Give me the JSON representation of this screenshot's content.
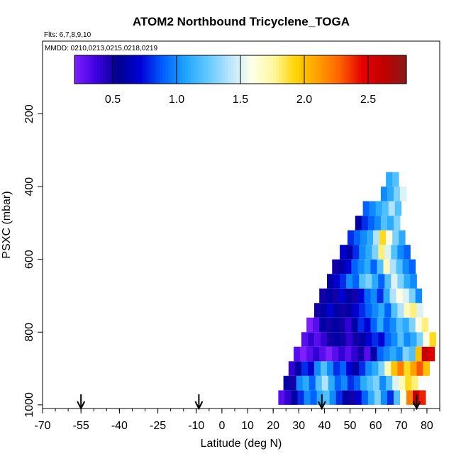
{
  "chart_data": {
    "type": "heatmap",
    "title": "ATOM2 Northbound Tricyclene_TOGA",
    "flights_note": "Flts: 6,7,8,9,10",
    "dates_note": "MMDD: 0210,0213,0215,0218,0219",
    "xlabel": "Latitude (deg N)",
    "ylabel": "PSXC (mbar)",
    "xlim": [
      -70,
      85
    ],
    "ylim": [
      1010,
      0
    ],
    "x_ticks": [
      -70,
      -55,
      -40,
      -25,
      -10,
      0,
      10,
      20,
      30,
      40,
      50,
      60,
      70,
      80
    ],
    "x_tick_labels": [
      "-70",
      "-55",
      "-40",
      "-25",
      "-10",
      "0",
      "10",
      "20",
      "30",
      "40",
      "50",
      "60",
      "70",
      "80"
    ],
    "y_ticks": [
      200,
      400,
      600,
      800,
      1000
    ],
    "y_tick_labels": [
      "200",
      "400",
      "600",
      "800",
      "1000"
    ],
    "colorbar": {
      "min": 0.2,
      "max": 2.8,
      "ticks": [
        0.5,
        1.0,
        1.5,
        2.0,
        2.5
      ],
      "tick_labels": [
        "0.5",
        "1.0",
        "1.5",
        "2.0",
        "2.5"
      ],
      "colors": [
        "#7f1fff",
        "#3c00e0",
        "#00008f",
        "#0000d8",
        "#0060ff",
        "#1ea4ff",
        "#60c8ff",
        "#b8e4ff",
        "#ffffe8",
        "#fff7a0",
        "#ffd400",
        "#ffa000",
        "#ff6000",
        "#e60000",
        "#c00000",
        "#8a1a1a"
      ]
    },
    "arrows_lat": [
      -55,
      -9,
      39,
      76
    ],
    "layers": [
      {
        "p": 980,
        "lat_start": 22,
        "values": [
          0.3,
          0.4,
          0.6,
          0.8,
          1.0,
          0.9,
          1.1,
          1.2,
          1.0,
          0.8,
          0.6,
          0.5,
          0.7,
          0.9,
          1.1,
          1.3,
          1.0,
          0.8,
          1.2,
          1.6,
          2.2,
          2.6,
          2.4
        ]
      },
      {
        "p": 940,
        "lat_start": 24,
        "values": [
          0.6,
          0.5,
          1.0,
          1.1,
          0.9,
          1.2,
          1.4,
          1.1,
          0.9,
          1.0,
          0.8,
          0.9,
          1.1,
          1.2,
          1.3,
          1.0,
          1.2,
          1.5,
          1.7,
          1.9,
          1.8
        ]
      },
      {
        "p": 900,
        "lat_start": 26,
        "values": [
          0.4,
          0.6,
          0.8,
          0.7,
          1.0,
          1.2,
          1.0,
          0.8,
          0.9,
          0.7,
          0.6,
          0.8,
          1.0,
          1.1,
          1.3,
          1.7,
          2.0,
          2.2,
          1.9,
          2.1,
          2.3,
          2.0
        ]
      },
      {
        "p": 860,
        "lat_start": 28,
        "values": [
          0.3,
          0.2,
          0.3,
          0.4,
          0.3,
          0.2,
          0.3,
          0.4,
          0.3,
          0.4,
          0.5,
          0.3,
          0.6,
          0.9,
          1.0,
          1.1,
          1.0,
          1.3,
          1.2,
          2.0,
          2.6,
          2.5
        ]
      },
      {
        "p": 820,
        "lat_start": 31,
        "values": [
          0.3,
          0.4,
          0.3,
          0.4,
          0.5,
          0.6,
          0.5,
          0.4,
          0.5,
          0.6,
          0.7,
          0.8,
          0.7,
          0.9,
          1.0,
          1.2,
          1.0,
          1.1,
          1.3,
          1.6,
          1.9
        ]
      },
      {
        "p": 780,
        "lat_start": 33,
        "values": [
          0.2,
          0.3,
          0.6,
          0.5,
          0.6,
          0.5,
          0.4,
          0.6,
          0.8,
          0.7,
          0.9,
          1.1,
          0.9,
          1.0,
          1.2,
          1.1,
          1.3,
          1.6,
          1.8
        ]
      },
      {
        "p": 740,
        "lat_start": 36,
        "values": [
          0.5,
          0.6,
          0.7,
          0.6,
          0.5,
          0.6,
          0.7,
          0.8,
          0.9,
          1.0,
          1.1,
          0.9,
          1.2,
          1.4,
          1.7,
          1.8,
          1.5
        ]
      },
      {
        "p": 700,
        "lat_start": 38,
        "values": [
          0.5,
          0.6,
          0.5,
          0.7,
          0.6,
          0.5,
          0.7,
          0.9,
          1.0,
          0.8,
          1.1,
          1.4,
          1.6,
          1.5,
          1.3,
          1.0
        ]
      },
      {
        "p": 660,
        "lat_start": 41,
        "values": [
          0.6,
          0.7,
          0.8,
          1.0,
          0.9,
          1.2,
          1.3,
          1.1,
          0.9,
          1.2,
          1.5,
          1.3,
          1.1,
          1.0
        ]
      },
      {
        "p": 620,
        "lat_start": 43,
        "values": [
          0.5,
          0.6,
          0.7,
          0.9,
          1.0,
          1.1,
          0.9,
          1.2,
          1.7,
          1.4,
          1.2,
          1.0,
          0.9
        ]
      },
      {
        "p": 580,
        "lat_start": 46,
        "values": [
          0.7,
          0.6,
          0.8,
          1.0,
          1.1,
          1.3,
          1.8,
          1.5,
          1.2,
          1.0,
          0.9
        ]
      },
      {
        "p": 540,
        "lat_start": 49,
        "values": [
          0.8,
          0.9,
          1.0,
          1.1,
          1.4,
          1.9,
          1.6,
          1.3,
          1.1
        ]
      },
      {
        "p": 500,
        "lat_start": 52,
        "values": [
          0.6,
          0.8,
          0.9,
          1.0,
          1.2,
          1.1,
          1.3
        ]
      },
      {
        "p": 460,
        "lat_start": 55,
        "values": [
          0.9,
          1.0,
          1.1,
          1.2,
          1.4,
          1.2
        ]
      },
      {
        "p": 420,
        "lat_start": 62,
        "values": [
          1.0,
          1.1,
          1.3,
          1.5
        ]
      },
      {
        "p": 380,
        "lat_start": 64,
        "values": [
          1.1,
          1.2
        ]
      }
    ]
  }
}
